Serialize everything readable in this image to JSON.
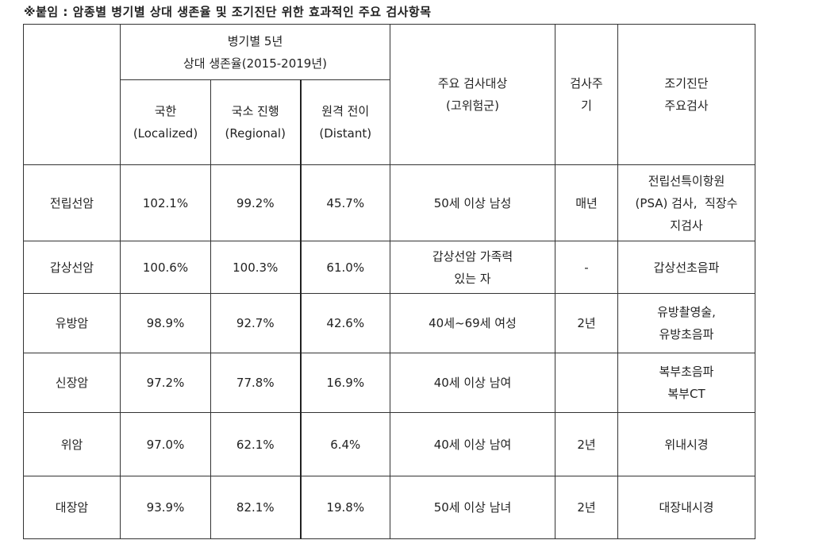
{
  "title": "※붙임 : 암종별 병기별 상대 생존율 및 조기진단 위한 효과적인 주요 검사항목",
  "header": {
    "survival_group_line1": "병기별 5년",
    "survival_group_line2": "상대 생존율(2015-2019년)",
    "localized_ko": "국한",
    "localized_en": "(Localized)",
    "regional_ko": "국소 진행",
    "regional_en": "(Regional)",
    "distant_ko": "원격 전이",
    "distant_en": "(Distant)",
    "target_line1": "주요 검사대상",
    "target_line2": "(고위험군)",
    "cycle_line1": "검사주",
    "cycle_line2": "기",
    "exam_line1": "조기진단",
    "exam_line2": "주요검사"
  },
  "rows": [
    {
      "cancer": "전립선암",
      "localized": "102.1%",
      "regional": "99.2%",
      "distant": "45.7%",
      "target": [
        "50세 이상 남성"
      ],
      "cycle": "매년",
      "exam": [
        "전립선특이항원",
        "(PSA) 검사,  직장수",
        "지검사"
      ]
    },
    {
      "cancer": "갑상선암",
      "localized": "100.6%",
      "regional": "100.3%",
      "distant": "61.0%",
      "target": [
        "갑상선암 가족력",
        "있는 자"
      ],
      "cycle": "-",
      "exam": [
        "갑상선초음파"
      ]
    },
    {
      "cancer": "유방암",
      "localized": "98.9%",
      "regional": "92.7%",
      "distant": "42.6%",
      "target": [
        "40세~69세 여성"
      ],
      "cycle": "2년",
      "exam": [
        "유방촬영술,",
        "유방초음파"
      ]
    },
    {
      "cancer": "신장암",
      "localized": "97.2%",
      "regional": "77.8%",
      "distant": "16.9%",
      "target": [
        "40세 이상 남여"
      ],
      "cycle": "",
      "exam": [
        "복부초음파",
        "복부CT"
      ]
    },
    {
      "cancer": "위암",
      "localized": "97.0%",
      "regional": "62.1%",
      "distant": "6.4%",
      "target": [
        "40세 이상 남여"
      ],
      "cycle": "2년",
      "exam": [
        "위내시경"
      ]
    },
    {
      "cancer": "대장암",
      "localized": "93.9%",
      "regional": "82.1%",
      "distant": "19.8%",
      "target": [
        "50세 이상 남녀"
      ],
      "cycle": "2년",
      "exam": [
        "대장내시경"
      ]
    }
  ]
}
